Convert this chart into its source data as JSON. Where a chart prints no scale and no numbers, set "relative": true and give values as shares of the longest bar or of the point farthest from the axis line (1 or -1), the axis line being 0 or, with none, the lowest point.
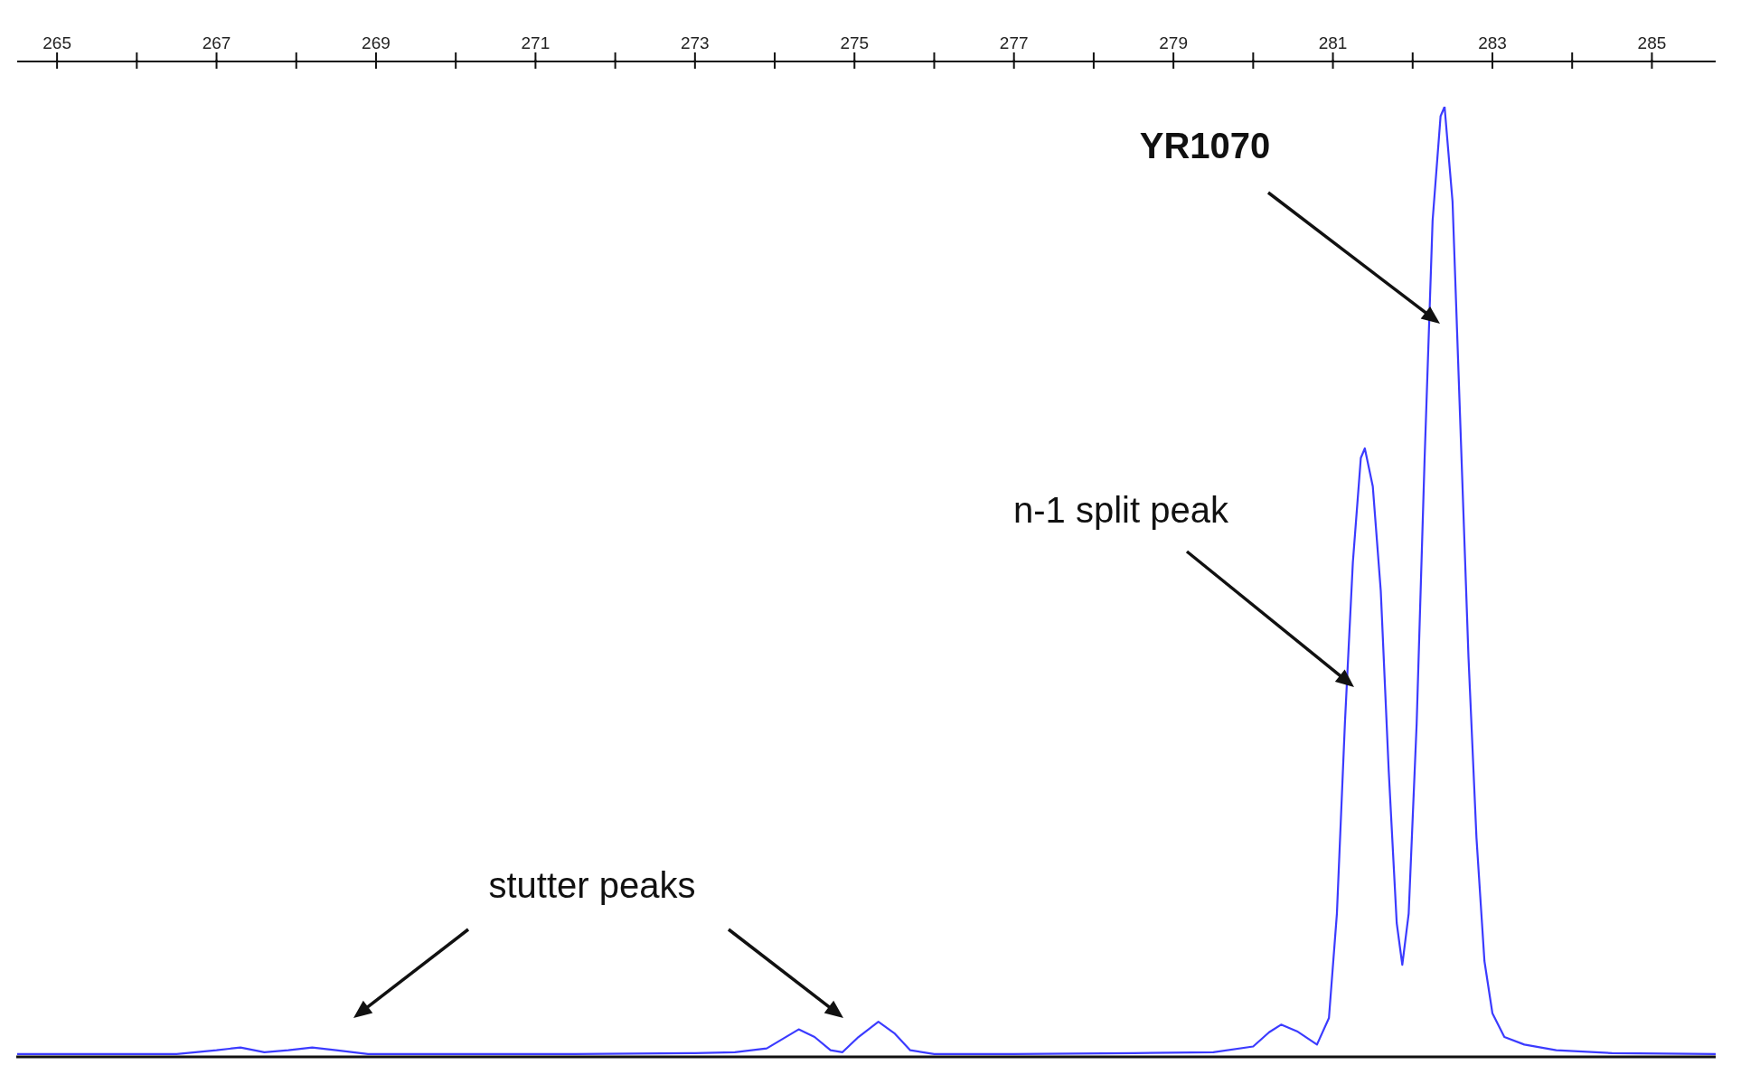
{
  "chart_data": {
    "type": "line",
    "relative": true,
    "marker": "none",
    "xlim": [
      264.5,
      285.8
    ],
    "xticks": [
      265,
      267,
      269,
      271,
      273,
      275,
      277,
      279,
      281,
      283,
      285
    ],
    "x": [
      264.5,
      266.5,
      267.0,
      267.3,
      267.6,
      267.9,
      268.2,
      268.5,
      268.9,
      270,
      271.5,
      273,
      273.5,
      273.9,
      274.1,
      274.3,
      274.5,
      274.7,
      274.85,
      275.05,
      275.3,
      275.5,
      275.7,
      276,
      277,
      278.5,
      279.5,
      280,
      280.2,
      280.35,
      280.55,
      280.8,
      280.95,
      281.05,
      281.15,
      281.25,
      281.35,
      281.4,
      281.5,
      281.6,
      281.7,
      281.8,
      281.87,
      281.95,
      282.05,
      282.15,
      282.25,
      282.35,
      282.4,
      282.5,
      282.6,
      282.7,
      282.8,
      282.9,
      283.0,
      283.15,
      283.4,
      283.8,
      284.5,
      285.8
    ],
    "series": [
      {
        "color": "#3b3bff",
        "values": [
          0.002,
          0.002,
          0.006,
          0.009,
          0.004,
          0.006,
          0.009,
          0.006,
          0.002,
          0.002,
          0.002,
          0.003,
          0.004,
          0.008,
          0.018,
          0.028,
          0.02,
          0.006,
          0.004,
          0.02,
          0.036,
          0.024,
          0.006,
          0.002,
          0.002,
          0.003,
          0.004,
          0.01,
          0.025,
          0.033,
          0.026,
          0.012,
          0.04,
          0.15,
          0.35,
          0.52,
          0.63,
          0.64,
          0.6,
          0.49,
          0.3,
          0.14,
          0.096,
          0.15,
          0.35,
          0.63,
          0.88,
          0.99,
          1,
          0.9,
          0.66,
          0.42,
          0.23,
          0.1,
          0.045,
          0.02,
          0.012,
          0.006,
          0.003,
          0.002
        ]
      }
    ],
    "annotations": [
      "YR1070",
      "n-1 split peak",
      "stutter peaks"
    ]
  }
}
